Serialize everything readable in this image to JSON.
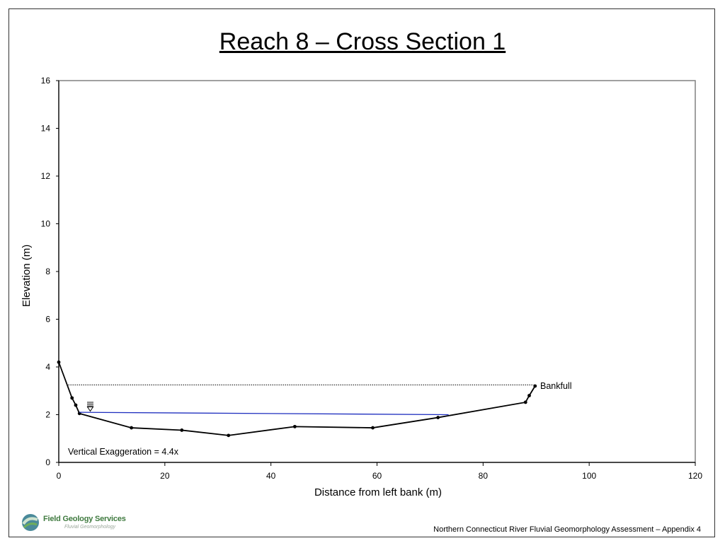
{
  "page": {
    "title": "Reach 8 – Cross Section 1",
    "footer": "Northern Connecticut River Fluvial Geomorphology Assessment – Appendix 4",
    "logo": {
      "name": "Field Geology Services",
      "tagline": "Fluvial Geomorphology"
    }
  },
  "chart_data": {
    "type": "line",
    "title": "Reach 8 – Cross Section 1",
    "xlabel": "Distance from left bank (m)",
    "ylabel": "Elevation (m)",
    "xlim": [
      0,
      120
    ],
    "ylim": [
      0,
      16
    ],
    "xticks": [
      0,
      20,
      40,
      60,
      80,
      100,
      120
    ],
    "yticks": [
      0,
      2,
      4,
      6,
      8,
      10,
      12,
      14,
      16
    ],
    "grid": false,
    "series": [
      {
        "style": "line-with-markers",
        "color": "#000000",
        "x": [
          0,
          2.5,
          3.2,
          3.9,
          13.7,
          23.2,
          32.0,
          44.5,
          59.2,
          71.5,
          88.0,
          88.7,
          89.8
        ],
        "y": [
          4.2,
          2.7,
          2.4,
          2.05,
          1.45,
          1.35,
          1.13,
          1.5,
          1.45,
          1.88,
          2.52,
          2.8,
          3.2
        ]
      },
      {
        "style": "water-surface",
        "color": "#1f2fbf",
        "x": [
          3.9,
          73.5
        ],
        "y": [
          2.1,
          2.0
        ]
      },
      {
        "style": "bankfull",
        "color": "#000000",
        "x": [
          1.8,
          89.8
        ],
        "y": [
          3.25,
          3.25
        ]
      }
    ],
    "annotations": {
      "bankfull": "Bankfull",
      "exaggeration": "Vertical Exaggeration = 4.4x"
    }
  }
}
